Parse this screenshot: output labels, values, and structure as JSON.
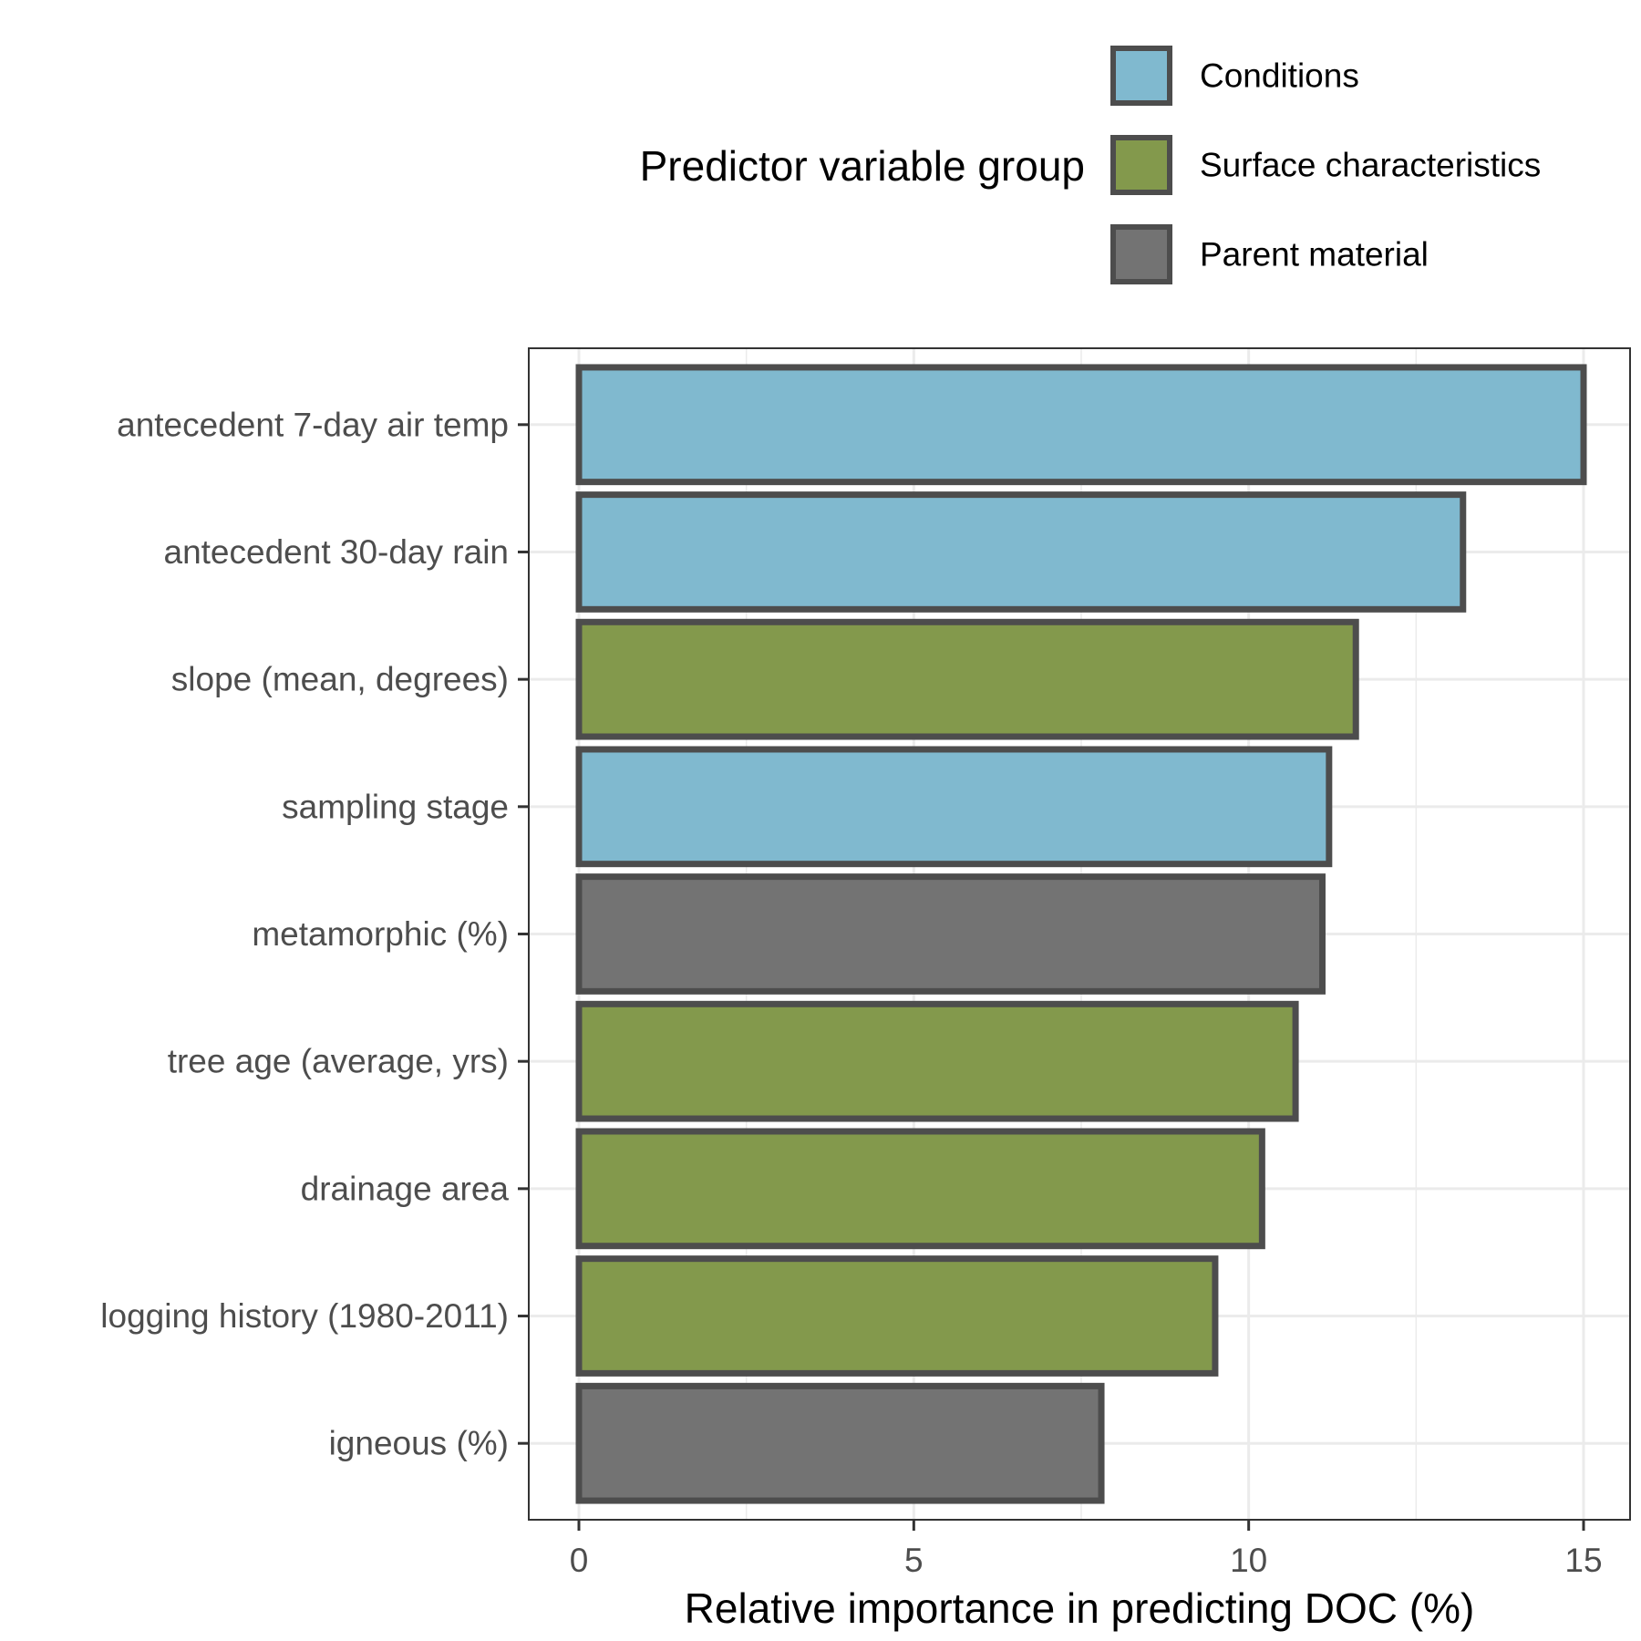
{
  "chart_data": {
    "type": "bar",
    "orientation": "horizontal",
    "xlabel": "Relative importance in predicting DOC (%)",
    "ylabel": "",
    "xlim": [
      0,
      15
    ],
    "xticks": [
      0,
      5,
      10,
      15
    ],
    "grid": true,
    "legend": {
      "title": "Predictor variable group",
      "placement": "top",
      "entries": [
        {
          "label": "Conditions",
          "color": "#80b9cf"
        },
        {
          "label": "Surface characteristics",
          "color": "#83994c"
        },
        {
          "label": "Parent material",
          "color": "#737373"
        }
      ]
    },
    "categories": [
      "antecedent 7-day air temp",
      "antecedent 30-day rain",
      "slope (mean, degrees)",
      "sampling stage",
      "metamorphic (%)",
      "tree age (average, yrs)",
      "drainage area",
      "logging history (1980-2011)",
      "igneous (%)"
    ],
    "values": [
      15.0,
      13.2,
      11.6,
      11.2,
      11.1,
      10.7,
      10.2,
      9.5,
      7.8
    ],
    "groups": [
      "Conditions",
      "Conditions",
      "Surface characteristics",
      "Conditions",
      "Parent material",
      "Surface characteristics",
      "Surface characteristics",
      "Surface characteristics",
      "Parent material"
    ],
    "bar_outline_color": "#4d4d4d"
  }
}
